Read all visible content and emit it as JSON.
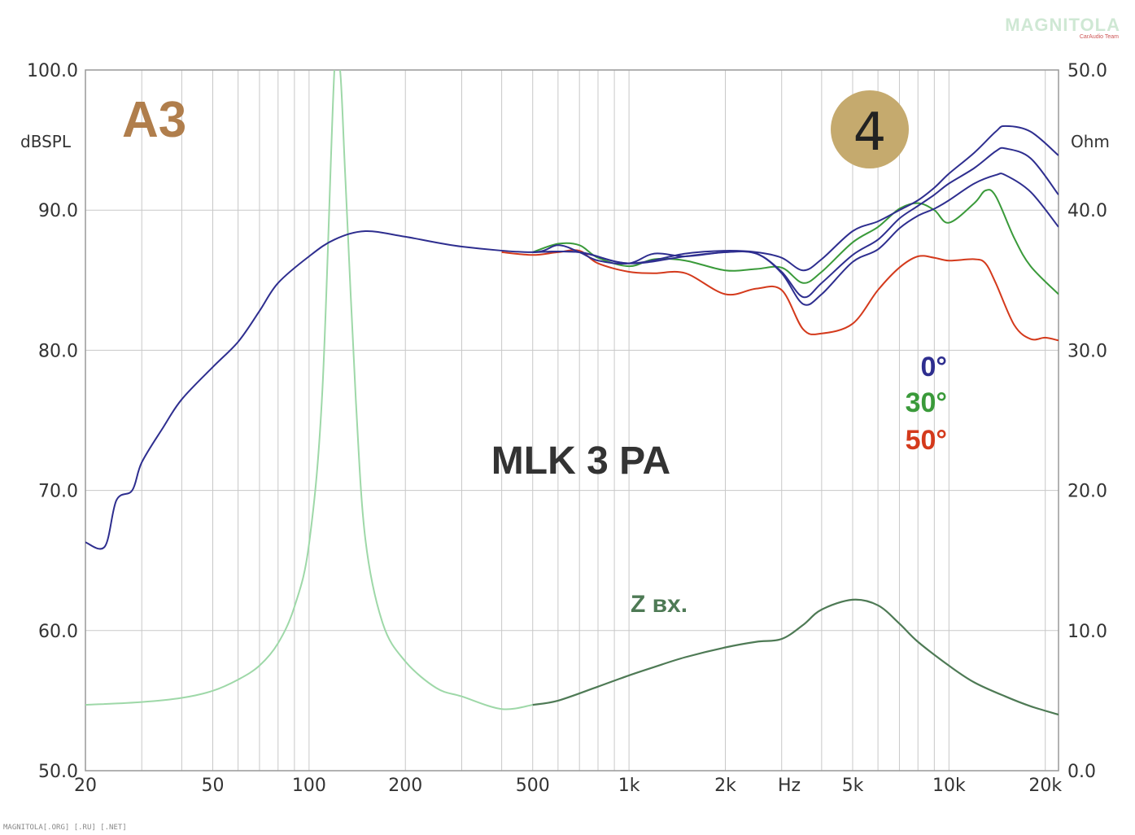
{
  "logo": {
    "main": "MAGNITOLA",
    "sub": "CarAudio Team"
  },
  "footer": "MAGNITOLA[.ORG] [.RU] [.NET]",
  "badge_number": "4",
  "brand_mark": "A3",
  "colors": {
    "deg0": "#2e2e8f",
    "deg30": "#3a9a3a",
    "deg50": "#d43a1c",
    "impedance_dark": "#4e7a55",
    "impedance_light": "#9ed8a8"
  },
  "chart_data": {
    "type": "line",
    "title": "MLK 3 PA",
    "x_axis": {
      "scale": "log",
      "range": [
        20,
        22000
      ],
      "unit_label": "Hz",
      "ticks": [
        {
          "value": 20,
          "label": "20"
        },
        {
          "value": 50,
          "label": "50"
        },
        {
          "value": 100,
          "label": "100"
        },
        {
          "value": 200,
          "label": "200"
        },
        {
          "value": 500,
          "label": "500"
        },
        {
          "value": 1000,
          "label": "1k"
        },
        {
          "value": 2000,
          "label": "2k"
        },
        {
          "value": 5000,
          "label": "5k"
        },
        {
          "value": 10000,
          "label": "10k"
        },
        {
          "value": 20000,
          "label": "20k"
        }
      ]
    },
    "y_left": {
      "label": "dBSPL",
      "range": [
        50,
        100
      ],
      "ticks": [
        "50.0",
        "60.0",
        "70.0",
        "80.0",
        "90.0",
        "100.0"
      ]
    },
    "y_right": {
      "label": "Ohm",
      "range": [
        0,
        50
      ],
      "ticks": [
        "0.0",
        "10.0",
        "20.0",
        "30.0",
        "40.0",
        "50.0"
      ]
    },
    "grid": true,
    "legend": [
      {
        "label": "0°",
        "color": "#2e2e8f"
      },
      {
        "label": "30°",
        "color": "#3a9a3a"
      },
      {
        "label": "50°",
        "color": "#d43a1c"
      }
    ],
    "impedance_label": "Z вх.",
    "series": [
      {
        "name": "0°",
        "axis": "left",
        "color": "#2e2e8f",
        "points": [
          [
            20,
            66.3
          ],
          [
            23,
            66.0
          ],
          [
            25,
            69.3
          ],
          [
            28,
            70.0
          ],
          [
            30,
            72.0
          ],
          [
            35,
            74.5
          ],
          [
            40,
            76.5
          ],
          [
            50,
            78.8
          ],
          [
            60,
            80.6
          ],
          [
            70,
            82.8
          ],
          [
            80,
            84.8
          ],
          [
            100,
            86.7
          ],
          [
            120,
            87.9
          ],
          [
            150,
            88.5
          ],
          [
            200,
            88.1
          ],
          [
            300,
            87.4
          ],
          [
            500,
            87.0
          ],
          [
            600,
            87.5
          ],
          [
            700,
            87.0
          ],
          [
            800,
            86.4
          ],
          [
            1000,
            86.2
          ],
          [
            1200,
            86.9
          ],
          [
            1500,
            86.7
          ],
          [
            2000,
            87.0
          ],
          [
            2500,
            86.9
          ],
          [
            3000,
            85.5
          ],
          [
            3500,
            83.3
          ],
          [
            4000,
            84.0
          ],
          [
            5000,
            86.3
          ],
          [
            6000,
            87.2
          ],
          [
            7000,
            88.7
          ],
          [
            8000,
            89.6
          ],
          [
            9000,
            90.1
          ],
          [
            10000,
            90.7
          ],
          [
            12000,
            91.9
          ],
          [
            14000,
            92.5
          ],
          [
            15000,
            92.5
          ],
          [
            18000,
            91.3
          ],
          [
            22000,
            88.8
          ]
        ]
      },
      {
        "name": "0°",
        "axis": "left",
        "color": "#2e2e8f",
        "points": [
          [
            500,
            87.0
          ],
          [
            700,
            87.0
          ],
          [
            1000,
            86.2
          ],
          [
            1500,
            86.7
          ],
          [
            2000,
            87.0
          ],
          [
            2500,
            86.9
          ],
          [
            3000,
            85.6
          ],
          [
            3500,
            83.8
          ],
          [
            4000,
            84.8
          ],
          [
            5000,
            86.8
          ],
          [
            6000,
            87.9
          ],
          [
            7000,
            89.4
          ],
          [
            8000,
            90.3
          ],
          [
            9000,
            91.1
          ],
          [
            10000,
            91.9
          ],
          [
            12000,
            93.0
          ],
          [
            14000,
            94.2
          ],
          [
            15000,
            94.4
          ],
          [
            18000,
            93.7
          ],
          [
            22000,
            91.1
          ]
        ]
      },
      {
        "name": "0°",
        "axis": "left",
        "color": "#2e2e8f",
        "points": [
          [
            500,
            87.0
          ],
          [
            700,
            87.0
          ],
          [
            1000,
            86.2
          ],
          [
            1500,
            86.9
          ],
          [
            2000,
            87.1
          ],
          [
            2500,
            87.0
          ],
          [
            3000,
            86.6
          ],
          [
            3500,
            85.7
          ],
          [
            4000,
            86.5
          ],
          [
            5000,
            88.5
          ],
          [
            6000,
            89.2
          ],
          [
            7000,
            90.0
          ],
          [
            8000,
            90.7
          ],
          [
            9000,
            91.6
          ],
          [
            10000,
            92.6
          ],
          [
            12000,
            94.1
          ],
          [
            14000,
            95.6
          ],
          [
            15000,
            96.0
          ],
          [
            18000,
            95.6
          ],
          [
            22000,
            93.9
          ]
        ]
      },
      {
        "name": "30°",
        "axis": "left",
        "color": "#3a9a3a",
        "points": [
          [
            500,
            87.0
          ],
          [
            600,
            87.6
          ],
          [
            700,
            87.5
          ],
          [
            800,
            86.6
          ],
          [
            1000,
            86.0
          ],
          [
            1200,
            86.5
          ],
          [
            1500,
            86.4
          ],
          [
            2000,
            85.7
          ],
          [
            2500,
            85.8
          ],
          [
            3000,
            85.9
          ],
          [
            3500,
            84.8
          ],
          [
            4000,
            85.6
          ],
          [
            5000,
            87.7
          ],
          [
            6000,
            88.8
          ],
          [
            7000,
            90.1
          ],
          [
            8000,
            90.5
          ],
          [
            9000,
            90.0
          ],
          [
            10000,
            89.1
          ],
          [
            12000,
            90.5
          ],
          [
            13000,
            91.4
          ],
          [
            14000,
            91.0
          ],
          [
            16000,
            88.0
          ],
          [
            18000,
            86.0
          ],
          [
            22000,
            84.0
          ]
        ]
      },
      {
        "name": "50°",
        "axis": "left",
        "color": "#d43a1c",
        "points": [
          [
            400,
            87.0
          ],
          [
            500,
            86.8
          ],
          [
            600,
            87.0
          ],
          [
            700,
            87.1
          ],
          [
            800,
            86.2
          ],
          [
            1000,
            85.6
          ],
          [
            1200,
            85.5
          ],
          [
            1500,
            85.5
          ],
          [
            2000,
            84.0
          ],
          [
            2500,
            84.4
          ],
          [
            3000,
            84.3
          ],
          [
            3500,
            81.5
          ],
          [
            4000,
            81.2
          ],
          [
            5000,
            81.9
          ],
          [
            6000,
            84.3
          ],
          [
            7000,
            85.9
          ],
          [
            8000,
            86.7
          ],
          [
            9000,
            86.6
          ],
          [
            10000,
            86.4
          ],
          [
            12000,
            86.5
          ],
          [
            13000,
            86.2
          ],
          [
            14000,
            84.8
          ],
          [
            16000,
            81.8
          ],
          [
            18000,
            80.8
          ],
          [
            20000,
            80.9
          ],
          [
            22000,
            80.7
          ]
        ]
      },
      {
        "name": "Z вх.",
        "axis": "right",
        "color": "#4e7a55",
        "points": [
          [
            20,
            4.7
          ],
          [
            30,
            4.9
          ],
          [
            40,
            5.2
          ],
          [
            50,
            5.7
          ],
          [
            60,
            6.5
          ],
          [
            70,
            7.5
          ],
          [
            80,
            9.1
          ],
          [
            90,
            11.7
          ],
          [
            100,
            16.2
          ],
          [
            110,
            27.0
          ],
          [
            120,
            50.0
          ],
          [
            125,
            50.0
          ],
          [
            130,
            42.0
          ],
          [
            140,
            26.5
          ],
          [
            150,
            16.5
          ],
          [
            170,
            10.5
          ],
          [
            200,
            7.8
          ],
          [
            250,
            5.9
          ],
          [
            300,
            5.3
          ],
          [
            400,
            4.4
          ],
          [
            500,
            4.7
          ],
          [
            600,
            5.0
          ],
          [
            800,
            6.0
          ],
          [
            1000,
            6.8
          ],
          [
            1200,
            7.4
          ],
          [
            1500,
            8.1
          ],
          [
            2000,
            8.8
          ],
          [
            2500,
            9.2
          ],
          [
            3000,
            9.4
          ],
          [
            3500,
            10.4
          ],
          [
            4000,
            11.5
          ],
          [
            5000,
            12.2
          ],
          [
            6000,
            11.8
          ],
          [
            7000,
            10.5
          ],
          [
            8000,
            9.2
          ],
          [
            10000,
            7.5
          ],
          [
            12000,
            6.3
          ],
          [
            15000,
            5.3
          ],
          [
            18000,
            4.6
          ],
          [
            22000,
            4.0
          ]
        ]
      }
    ]
  }
}
